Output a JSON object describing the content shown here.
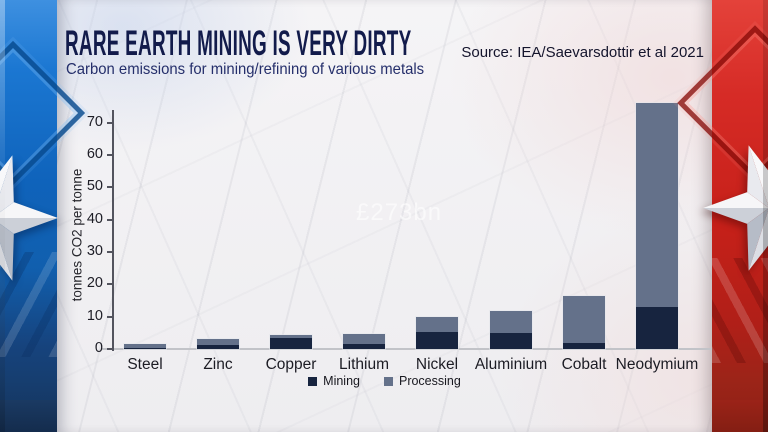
{
  "header": {
    "title": "RARE EARTH MINING IS VERY DIRTY",
    "subtitle": "Carbon emissions for mining/refining of various metals",
    "source": "Source: IEA/Saevarsdottir et al 2021"
  },
  "watermark": "£273bn",
  "colors": {
    "mining": "#17243f",
    "processing": "#64718a",
    "title_text": "#121b4b",
    "subtitle_text": "#252f6b",
    "left_panel_blue": "#1173cf",
    "right_panel_red": "#cf2620",
    "left_footer_navy": "#1a3a63",
    "right_footer_red": "#9b2318"
  },
  "chart_data": {
    "type": "bar",
    "stacked": true,
    "title": "Carbon emissions for mining/refining of various metals",
    "categories": [
      "Steel",
      "Zinc",
      "Copper",
      "Lithium",
      "Nickel",
      "Aluminium",
      "Cobalt",
      "Neodymium"
    ],
    "series": [
      {
        "name": "Mining",
        "color": "#17243f",
        "values": [
          0.2,
          1.1,
          3.3,
          1.5,
          5.2,
          5.0,
          1.9,
          13
        ]
      },
      {
        "name": "Processing",
        "color": "#64718a",
        "values": [
          1.4,
          2.1,
          1.0,
          3.2,
          4.8,
          6.8,
          14.5,
          63
        ]
      }
    ],
    "totals": [
      1.6,
      3.2,
      4.3,
      4.7,
      10,
      11.8,
      16.4,
      76
    ],
    "xlabel": "",
    "ylabel": "tonnes CO2 per tonne",
    "yticks": [
      0,
      10,
      20,
      30,
      40,
      50,
      60,
      70
    ],
    "ylim": [
      0,
      78
    ],
    "grid": false,
    "legend_position": "bottom"
  }
}
